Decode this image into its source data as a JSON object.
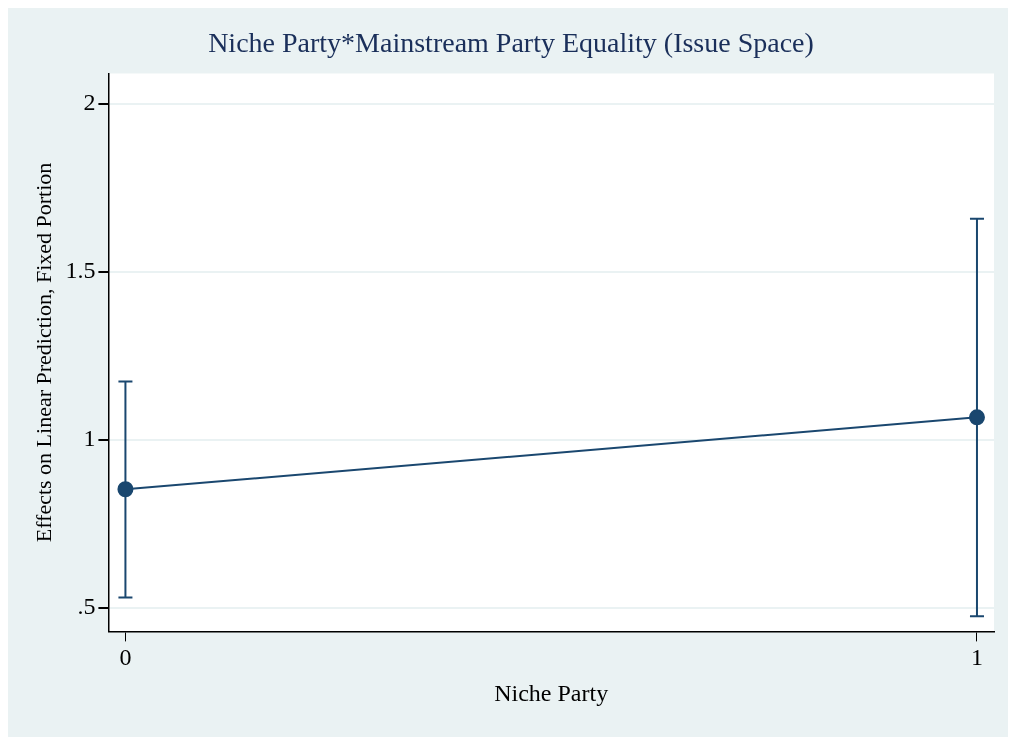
{
  "chart_data": {
    "type": "line",
    "title": "Niche Party*Mainstream Party Equality (Issue Space)",
    "xlabel": "Niche Party",
    "ylabel": "Effects on Linear Prediction, Fixed Portion",
    "x": [
      0,
      1
    ],
    "series": [
      {
        "color": "#1a476f",
        "values": [
          0.853,
          1.067
        ],
        "errors": [
          [
            0.531,
            1.174
          ],
          [
            0.475,
            1.658
          ]
        ]
      }
    ],
    "xlim": [
      -0.02,
      1.02
    ],
    "xticks": [
      0,
      1
    ],
    "ylim": [
      0.43,
      2.09
    ],
    "yticks": [
      {
        "value": 0.5,
        "label": ".5"
      },
      1,
      1.5,
      2
    ],
    "grid": "y",
    "marker": "circle",
    "line_style": "solid",
    "legend": false
  }
}
